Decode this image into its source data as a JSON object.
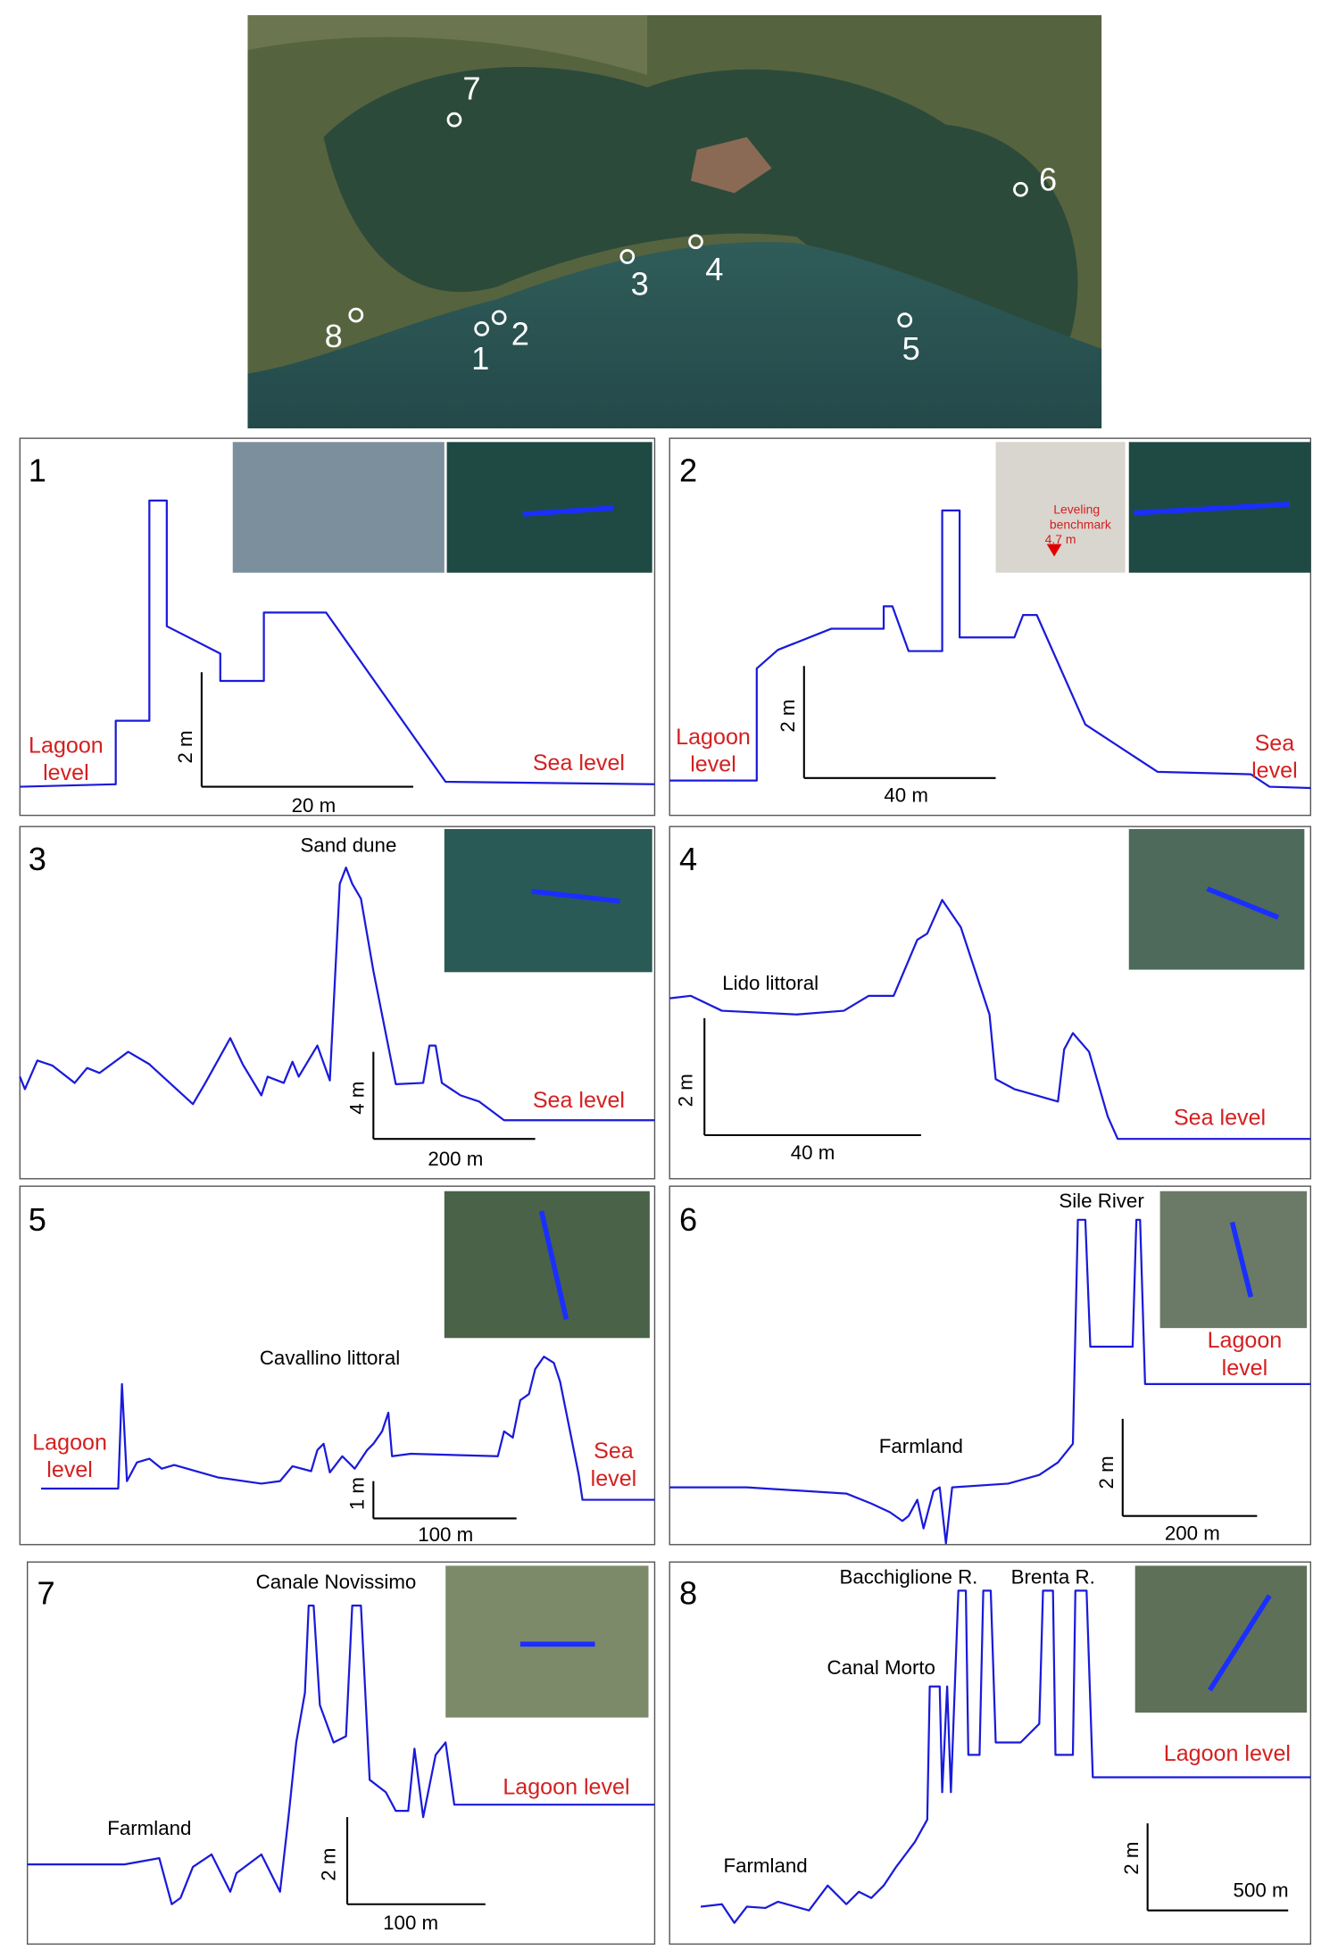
{
  "map": {
    "site_labels": [
      "1",
      "2",
      "3",
      "4",
      "5",
      "6",
      "7",
      "8"
    ]
  },
  "panels": [
    {
      "number": "1",
      "annotations": [],
      "left_label": [
        "Lagoon",
        "level"
      ],
      "right_label": [
        "Sea level"
      ],
      "scale": {
        "vertical": "2 m",
        "horizontal": "20 m"
      }
    },
    {
      "number": "2",
      "annotations": [],
      "inset_note": [
        "Leveling",
        "benchmark",
        "4.7 m"
      ],
      "left_label": [
        "Lagoon",
        "level"
      ],
      "right_label": [
        "Sea",
        "level"
      ],
      "scale": {
        "vertical": "2 m",
        "horizontal": "40 m"
      }
    },
    {
      "number": "3",
      "annotations": [
        "Sand dune"
      ],
      "left_label": [],
      "right_label": [
        "Sea level"
      ],
      "scale": {
        "vertical": "4 m",
        "horizontal": "200 m"
      }
    },
    {
      "number": "4",
      "annotations": [
        "Lido littoral"
      ],
      "left_label": [],
      "right_label": [
        "Sea level"
      ],
      "scale": {
        "vertical": "2 m",
        "horizontal": "40 m"
      }
    },
    {
      "number": "5",
      "annotations": [
        "Cavallino littoral"
      ],
      "left_label": [
        "Lagoon",
        "level"
      ],
      "right_label": [
        "Sea",
        "level"
      ],
      "scale": {
        "vertical": "1 m",
        "horizontal": "100 m"
      }
    },
    {
      "number": "6",
      "annotations": [
        "Sile River",
        "Farmland"
      ],
      "left_label": [],
      "right_label": [
        "Lagoon",
        "level"
      ],
      "scale": {
        "vertical": "2 m",
        "horizontal": "200 m"
      }
    },
    {
      "number": "7",
      "annotations": [
        "Canale Novissimo",
        "Farmland"
      ],
      "left_label": [],
      "right_label": [
        "Lagoon level"
      ],
      "scale": {
        "vertical": "2 m",
        "horizontal": "100 m"
      }
    },
    {
      "number": "8",
      "annotations": [
        "Bacchiglione R.",
        "Brenta R.",
        "Canal Morto",
        "Farmland"
      ],
      "left_label": [],
      "right_label": [
        "Lagoon level"
      ],
      "scale": {
        "vertical": "2 m",
        "horizontal": "500 m"
      }
    }
  ]
}
